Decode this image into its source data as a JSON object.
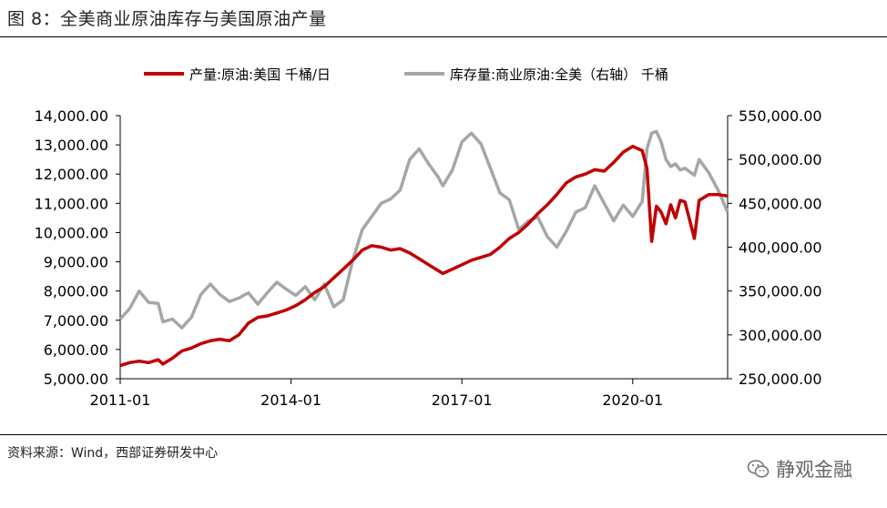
{
  "header": {
    "title": "图 8：全美商业原油库存与美国原油产量"
  },
  "footer": {
    "source": "资料来源：Wind，西部证券研发中心"
  },
  "watermark": {
    "text": "静观金融",
    "icon": "wechat-logo-icon"
  },
  "chart_data": {
    "type": "line",
    "title": "图 8：全美商业原油库存与美国原油产量",
    "legend_position": "top",
    "grid": false,
    "x_axis": {
      "range": [
        "2011-01",
        "2021-09"
      ],
      "tick_labels": [
        "2011-01",
        "2014-01",
        "2017-01",
        "2020-01"
      ]
    },
    "y_axis_left": {
      "range": [
        5000,
        14000
      ],
      "tick_labels": [
        "5,000.00",
        "6,000.00",
        "7,000.00",
        "8,000.00",
        "9,000.00",
        "10,000.00",
        "11,000.00",
        "12,000.00",
        "13,000.00",
        "14,000.00"
      ]
    },
    "y_axis_right": {
      "range": [
        250000,
        550000
      ],
      "tick_labels": [
        "250,000.00",
        "300,000.00",
        "350,000.00",
        "400,000.00",
        "450,000.00",
        "500,000.00",
        "550,000.00"
      ]
    },
    "series": [
      {
        "name": "产量:原油:美国 千桶/日",
        "axis": "left",
        "color": "#C00000",
        "points": [
          [
            "2011-01",
            5450
          ],
          [
            "2011-03",
            5550
          ],
          [
            "2011-05",
            5600
          ],
          [
            "2011-07",
            5550
          ],
          [
            "2011-09",
            5650
          ],
          [
            "2011-10",
            5500
          ],
          [
            "2011-12",
            5700
          ],
          [
            "2012-02",
            5950
          ],
          [
            "2012-04",
            6050
          ],
          [
            "2012-06",
            6200
          ],
          [
            "2012-08",
            6300
          ],
          [
            "2012-10",
            6350
          ],
          [
            "2012-12",
            6300
          ],
          [
            "2013-02",
            6500
          ],
          [
            "2013-04",
            6900
          ],
          [
            "2013-06",
            7100
          ],
          [
            "2013-08",
            7150
          ],
          [
            "2013-10",
            7250
          ],
          [
            "2013-12",
            7350
          ],
          [
            "2014-02",
            7500
          ],
          [
            "2014-04",
            7700
          ],
          [
            "2014-06",
            7950
          ],
          [
            "2014-08",
            8150
          ],
          [
            "2014-10",
            8450
          ],
          [
            "2014-12",
            8750
          ],
          [
            "2015-02",
            9050
          ],
          [
            "2015-04",
            9400
          ],
          [
            "2015-06",
            9550
          ],
          [
            "2015-08",
            9500
          ],
          [
            "2015-10",
            9400
          ],
          [
            "2015-12",
            9450
          ],
          [
            "2016-02",
            9300
          ],
          [
            "2016-04",
            9100
          ],
          [
            "2016-06",
            8900
          ],
          [
            "2016-08",
            8700
          ],
          [
            "2016-09",
            8600
          ],
          [
            "2016-11",
            8750
          ],
          [
            "2017-01",
            8900
          ],
          [
            "2017-03",
            9050
          ],
          [
            "2017-05",
            9150
          ],
          [
            "2017-07",
            9250
          ],
          [
            "2017-09",
            9500
          ],
          [
            "2017-11",
            9800
          ],
          [
            "2018-01",
            10000
          ],
          [
            "2018-03",
            10300
          ],
          [
            "2018-05",
            10650
          ],
          [
            "2018-07",
            10950
          ],
          [
            "2018-09",
            11300
          ],
          [
            "2018-11",
            11700
          ],
          [
            "2019-01",
            11900
          ],
          [
            "2019-03",
            12000
          ],
          [
            "2019-05",
            12150
          ],
          [
            "2019-07",
            12100
          ],
          [
            "2019-09",
            12400
          ],
          [
            "2019-11",
            12750
          ],
          [
            "2020-01",
            12950
          ],
          [
            "2020-03",
            12800
          ],
          [
            "2020-04",
            12200
          ],
          [
            "2020-05",
            9700
          ],
          [
            "2020-06",
            10900
          ],
          [
            "2020-07",
            10700
          ],
          [
            "2020-08",
            10300
          ],
          [
            "2020-09",
            10950
          ],
          [
            "2020-10",
            10500
          ],
          [
            "2020-11",
            11100
          ],
          [
            "2020-12",
            11050
          ],
          [
            "2021-02",
            9800
          ],
          [
            "2021-03",
            11100
          ],
          [
            "2021-05",
            11300
          ],
          [
            "2021-07",
            11300
          ],
          [
            "2021-09",
            11250
          ]
        ]
      },
      {
        "name": "库存量:商业原油:全美（右轴） 千桶",
        "axis": "right",
        "color": "#A6A6A6",
        "points": [
          [
            "2011-01",
            318000
          ],
          [
            "2011-03",
            330000
          ],
          [
            "2011-05",
            350000
          ],
          [
            "2011-07",
            337000
          ],
          [
            "2011-09",
            336000
          ],
          [
            "2011-10",
            315000
          ],
          [
            "2011-12",
            318000
          ],
          [
            "2012-02",
            308000
          ],
          [
            "2012-04",
            320000
          ],
          [
            "2012-06",
            346000
          ],
          [
            "2012-08",
            358000
          ],
          [
            "2012-10",
            346000
          ],
          [
            "2012-12",
            338000
          ],
          [
            "2013-02",
            342000
          ],
          [
            "2013-04",
            348000
          ],
          [
            "2013-06",
            335000
          ],
          [
            "2013-08",
            348000
          ],
          [
            "2013-10",
            360000
          ],
          [
            "2013-12",
            352000
          ],
          [
            "2014-02",
            345000
          ],
          [
            "2014-04",
            355000
          ],
          [
            "2014-06",
            340000
          ],
          [
            "2014-08",
            358000
          ],
          [
            "2014-10",
            332000
          ],
          [
            "2014-12",
            340000
          ],
          [
            "2015-02",
            385000
          ],
          [
            "2015-04",
            420000
          ],
          [
            "2015-06",
            435000
          ],
          [
            "2015-08",
            450000
          ],
          [
            "2015-10",
            455000
          ],
          [
            "2015-12",
            465000
          ],
          [
            "2016-02",
            500000
          ],
          [
            "2016-04",
            512000
          ],
          [
            "2016-06",
            495000
          ],
          [
            "2016-08",
            480000
          ],
          [
            "2016-09",
            470000
          ],
          [
            "2016-11",
            488000
          ],
          [
            "2017-01",
            520000
          ],
          [
            "2017-03",
            530000
          ],
          [
            "2017-05",
            518000
          ],
          [
            "2017-07",
            490000
          ],
          [
            "2017-09",
            462000
          ],
          [
            "2017-11",
            454000
          ],
          [
            "2018-01",
            420000
          ],
          [
            "2018-03",
            430000
          ],
          [
            "2018-05",
            434000
          ],
          [
            "2018-07",
            412000
          ],
          [
            "2018-09",
            400000
          ],
          [
            "2018-11",
            418000
          ],
          [
            "2019-01",
            440000
          ],
          [
            "2019-03",
            445000
          ],
          [
            "2019-05",
            470000
          ],
          [
            "2019-07",
            450000
          ],
          [
            "2019-09",
            430000
          ],
          [
            "2019-11",
            448000
          ],
          [
            "2020-01",
            435000
          ],
          [
            "2020-03",
            452000
          ],
          [
            "2020-04",
            512000
          ],
          [
            "2020-05",
            530000
          ],
          [
            "2020-06",
            532000
          ],
          [
            "2020-07",
            520000
          ],
          [
            "2020-08",
            500000
          ],
          [
            "2020-09",
            492000
          ],
          [
            "2020-10",
            495000
          ],
          [
            "2020-11",
            488000
          ],
          [
            "2020-12",
            490000
          ],
          [
            "2021-02",
            482000
          ],
          [
            "2021-03",
            500000
          ],
          [
            "2021-05",
            485000
          ],
          [
            "2021-07",
            465000
          ],
          [
            "2021-09",
            440000
          ]
        ]
      }
    ]
  }
}
